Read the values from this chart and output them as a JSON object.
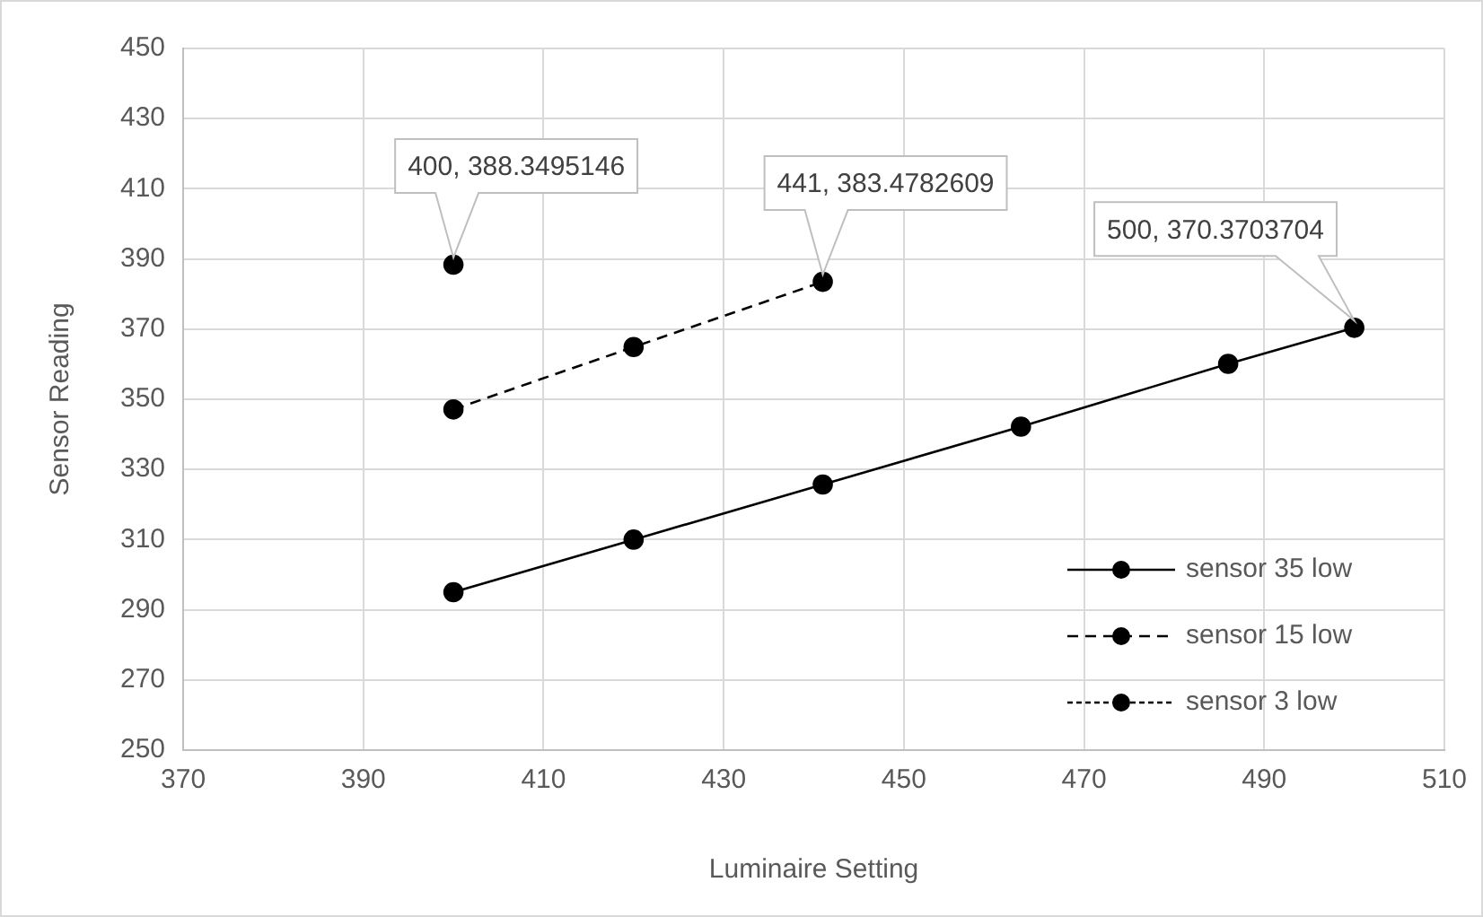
{
  "chart_data": {
    "type": "line",
    "xlabel": "Luminaire Setting",
    "ylabel": "Sensor Reading",
    "xlim": [
      370,
      510
    ],
    "xticks": [
      370,
      390,
      410,
      430,
      450,
      470,
      490,
      510
    ],
    "ylim": [
      250,
      450
    ],
    "yticks": [
      250,
      270,
      290,
      310,
      330,
      350,
      370,
      390,
      410,
      430,
      450
    ],
    "grid": true,
    "legend": "bottom right",
    "marker": "circle",
    "series": [
      {
        "name": "sensor 35 low",
        "color": "#000000",
        "line_style": "solid",
        "x": [
          400,
          420,
          441,
          463,
          486,
          500
        ],
        "values": [
          295,
          310,
          325.7,
          342.2,
          360.1,
          370.3703704
        ],
        "value_labels": [
          null,
          null,
          null,
          null,
          null,
          "500, 370.3703704"
        ]
      },
      {
        "name": "sensor 15 low",
        "color": "#000000",
        "line_style": "dashed",
        "x": [
          400,
          420,
          441
        ],
        "values": [
          347.1,
          364.9,
          383.4782609
        ],
        "value_labels": [
          null,
          null,
          "441, 383.4782609"
        ]
      },
      {
        "name": "sensor 3 low",
        "color": "#000000",
        "line_style": "dotted",
        "x": [
          400
        ],
        "values": [
          388.3495146
        ],
        "value_labels": [
          "400, 388.3495146"
        ]
      }
    ]
  }
}
